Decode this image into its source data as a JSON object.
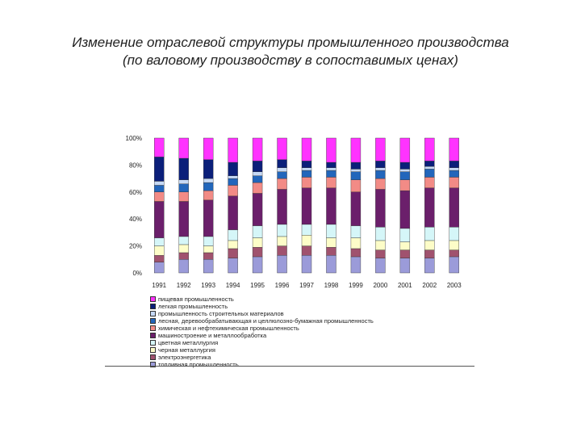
{
  "title": {
    "line1": "Изменение отраслевой структуры промышленного производства",
    "line2": "(по валовому производству в сопоставимых ценах)"
  },
  "chart_data": {
    "type": "bar",
    "stacked": true,
    "percent": true,
    "categories": [
      "1991",
      "1992",
      "1993",
      "1994",
      "1995",
      "1996",
      "1997",
      "1998",
      "1999",
      "2000",
      "2001",
      "2002",
      "2003"
    ],
    "y_ticks": [
      "0%",
      "20%",
      "40%",
      "60%",
      "80%",
      "100%"
    ],
    "ylim": [
      0,
      100
    ],
    "legend_position": "bottom",
    "series": [
      {
        "name": "топливная промышленность",
        "color": "#9b9bd9",
        "values": [
          8,
          10,
          10,
          11,
          12,
          13,
          13,
          13,
          12,
          11,
          11,
          11,
          12
        ]
      },
      {
        "name": "электроэнергетика",
        "color": "#a0526e",
        "values": [
          5,
          5,
          5,
          7,
          7,
          7,
          7,
          6,
          6,
          6,
          6,
          6,
          5
        ]
      },
      {
        "name": "черная металлургия",
        "color": "#fdfdc8",
        "values": [
          7,
          6,
          5,
          6,
          7,
          7,
          8,
          7,
          8,
          7,
          6,
          7,
          7
        ]
      },
      {
        "name": "цветная металлургия",
        "color": "#d5f6f8",
        "values": [
          6,
          6,
          7,
          8,
          9,
          9,
          8,
          10,
          9,
          10,
          10,
          10,
          10
        ]
      },
      {
        "name": "машиностроение и металлообработка",
        "color": "#6b1f6b",
        "values": [
          27,
          26,
          27,
          25,
          24,
          26,
          27,
          27,
          25,
          28,
          28,
          29,
          29
        ]
      },
      {
        "name": "химическая и нефтехимическая промышленность",
        "color": "#f28b86",
        "values": [
          7,
          7,
          7,
          8,
          8,
          8,
          8,
          8,
          9,
          8,
          8,
          8,
          8
        ]
      },
      {
        "name": "лесная, деревообрабатывающая и целлюлозно-бумажная промышленность",
        "color": "#2266bb",
        "values": [
          5,
          6,
          6,
          5,
          5,
          5,
          5,
          5,
          6,
          6,
          6,
          6,
          5
        ]
      },
      {
        "name": "промышленность строительных материалов",
        "color": "#c6d9f5",
        "values": [
          3,
          3,
          3,
          2,
          3,
          3,
          2,
          2,
          2,
          2,
          2,
          2,
          2
        ]
      },
      {
        "name": "легкая промышленность",
        "color": "#0b1f7a",
        "values": [
          18,
          16,
          14,
          10,
          8,
          6,
          5,
          4,
          5,
          5,
          5,
          4,
          5
        ]
      },
      {
        "name": "пищевая промышленность",
        "color": "#ff33ff",
        "values": [
          14,
          15,
          16,
          18,
          17,
          16,
          17,
          18,
          18,
          17,
          18,
          17,
          17
        ]
      }
    ]
  }
}
